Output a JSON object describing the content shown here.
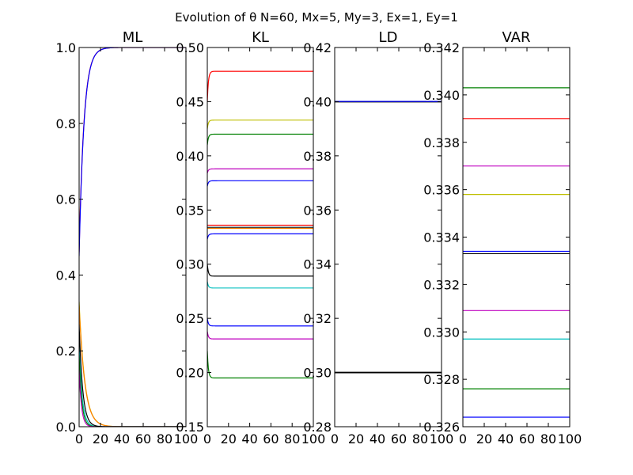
{
  "figure": {
    "suptitle": "Evolution of θ N=60, Mx=5, My=3, Ex=1, Ey=1"
  },
  "chart_data": [
    {
      "type": "line",
      "title": "ML",
      "xlabel": "",
      "ylabel": "",
      "xlim": [
        0,
        100
      ],
      "ylim": [
        0.0,
        1.0
      ],
      "xticks": [
        0,
        20,
        40,
        60,
        80,
        100
      ],
      "xtick_labels": [
        "0",
        "20",
        "40",
        "60",
        "80",
        "100"
      ],
      "yticks": [
        0.0,
        0.2,
        0.4,
        0.6,
        0.8,
        1.0
      ],
      "ytick_labels": [
        "0.0",
        "0.2",
        "0.4",
        "0.6",
        "0.8",
        "1.0"
      ],
      "series": [
        {
          "color": "#ff0000",
          "start": 0.46,
          "end": 1.0,
          "rate": 0.22
        },
        {
          "color": "#0000ff",
          "start": 0.45,
          "end": 1.0,
          "rate": 0.22
        },
        {
          "color": "#bfbf00",
          "start": 0.33,
          "end": 0.0,
          "rate": 0.19
        },
        {
          "color": "#ff8000",
          "start": 0.32,
          "end": 0.0,
          "rate": 0.19
        },
        {
          "color": "#00bfbf",
          "start": 0.22,
          "end": 0.0,
          "rate": 0.35
        },
        {
          "color": "#008000",
          "start": 0.19,
          "end": 0.0,
          "rate": 0.4
        },
        {
          "color": "#bf00bf",
          "start": 0.15,
          "end": 0.0,
          "rate": 0.45
        },
        {
          "color": "#000000",
          "start": 0.27,
          "end": 0.0,
          "rate": 0.3
        }
      ]
    },
    {
      "type": "line",
      "title": "KL",
      "xlabel": "",
      "ylabel": "",
      "xlim": [
        0,
        100
      ],
      "ylim": [
        0.15,
        0.5
      ],
      "xticks": [
        0,
        20,
        40,
        60,
        80,
        100
      ],
      "xtick_labels": [
        "0",
        "20",
        "40",
        "60",
        "80",
        "100"
      ],
      "yticks": [
        0.15,
        0.2,
        0.25,
        0.3,
        0.35,
        0.4,
        0.45,
        0.5
      ],
      "ytick_labels": [
        "0.15",
        "0.20",
        "0.25",
        "0.30",
        "0.35",
        "0.40",
        "0.45",
        "0.50"
      ],
      "series": [
        {
          "color": "#ff0000",
          "start": 0.45,
          "end": 0.478,
          "rate": 1.0
        },
        {
          "color": "#bfbf00",
          "start": 0.425,
          "end": 0.433,
          "rate": 1.0
        },
        {
          "color": "#008000",
          "start": 0.41,
          "end": 0.42,
          "rate": 1.0
        },
        {
          "color": "#bf00bf",
          "start": 0.384,
          "end": 0.388,
          "rate": 1.0
        },
        {
          "color": "#0000ff",
          "start": 0.372,
          "end": 0.377,
          "rate": 1.0
        },
        {
          "color": "#ff0000",
          "start": 0.336,
          "end": 0.336,
          "rate": 1.0
        },
        {
          "color": "#000000",
          "start": 0.334,
          "end": 0.334,
          "rate": 1.0
        },
        {
          "color": "#ff8000",
          "start": 0.333,
          "end": 0.333,
          "rate": 1.0
        },
        {
          "color": "#0000ff",
          "start": 0.323,
          "end": 0.328,
          "rate": 1.0
        },
        {
          "color": "#000000",
          "start": 0.3,
          "end": 0.289,
          "rate": 1.0
        },
        {
          "color": "#00bfbf",
          "start": 0.284,
          "end": 0.278,
          "rate": 1.0
        },
        {
          "color": "#0000ff",
          "start": 0.25,
          "end": 0.243,
          "rate": 1.0
        },
        {
          "color": "#bf00bf",
          "start": 0.238,
          "end": 0.231,
          "rate": 1.0
        },
        {
          "color": "#008000",
          "start": 0.22,
          "end": 0.195,
          "rate": 1.0
        }
      ]
    },
    {
      "type": "line",
      "title": "LD",
      "xlabel": "",
      "ylabel": "",
      "xlim": [
        0,
        100
      ],
      "ylim": [
        0.28,
        0.42
      ],
      "xticks": [
        0,
        20,
        40,
        60,
        80,
        100
      ],
      "xtick_labels": [
        "0",
        "20",
        "40",
        "60",
        "80",
        "100"
      ],
      "yticks": [
        0.28,
        0.3,
        0.32,
        0.34,
        0.36,
        0.38,
        0.4,
        0.42
      ],
      "ytick_labels": [
        "0.28",
        "0.30",
        "0.32",
        "0.34",
        "0.36",
        "0.38",
        "0.40",
        "0.42"
      ],
      "series": [
        {
          "color": "#000000",
          "start": 0.3999,
          "end": 0.3999,
          "rate": 1.0
        },
        {
          "color": "#0000ff",
          "start": 0.4001,
          "end": 0.4001,
          "rate": 1.0
        },
        {
          "color": "#000000",
          "start": 0.2999,
          "end": 0.2999,
          "rate": 1.0
        },
        {
          "color": "#000000",
          "start": 0.3001,
          "end": 0.3001,
          "rate": 1.0
        }
      ]
    },
    {
      "type": "line",
      "title": "VAR",
      "xlabel": "",
      "ylabel": "",
      "xlim": [
        0,
        100
      ],
      "ylim": [
        0.326,
        0.342
      ],
      "xticks": [
        0,
        20,
        40,
        60,
        80,
        100
      ],
      "xtick_labels": [
        "0",
        "20",
        "40",
        "60",
        "80",
        "100"
      ],
      "yticks": [
        0.326,
        0.328,
        0.33,
        0.332,
        0.334,
        0.336,
        0.338,
        0.34,
        0.342
      ],
      "ytick_labels": [
        "0.326",
        "0.328",
        "0.330",
        "0.332",
        "0.334",
        "0.336",
        "0.338",
        "0.340",
        "0.342"
      ],
      "series": [
        {
          "color": "#008000",
          "start": 0.3403,
          "end": 0.3403,
          "rate": 1.0
        },
        {
          "color": "#ff0000",
          "start": 0.339,
          "end": 0.339,
          "rate": 1.0
        },
        {
          "color": "#bf00bf",
          "start": 0.337,
          "end": 0.337,
          "rate": 1.0
        },
        {
          "color": "#bfbf00",
          "start": 0.3358,
          "end": 0.3358,
          "rate": 1.0
        },
        {
          "color": "#0000ff",
          "start": 0.3334,
          "end": 0.3334,
          "rate": 1.0
        },
        {
          "color": "#000000",
          "start": 0.3333,
          "end": 0.3333,
          "rate": 1.0
        },
        {
          "color": "#bf00bf",
          "start": 0.3309,
          "end": 0.3309,
          "rate": 1.0
        },
        {
          "color": "#00bfbf",
          "start": 0.3297,
          "end": 0.3297,
          "rate": 1.0
        },
        {
          "color": "#008000",
          "start": 0.3276,
          "end": 0.3276,
          "rate": 1.0
        },
        {
          "color": "#0000ff",
          "start": 0.3264,
          "end": 0.3264,
          "rate": 1.0
        }
      ]
    }
  ]
}
